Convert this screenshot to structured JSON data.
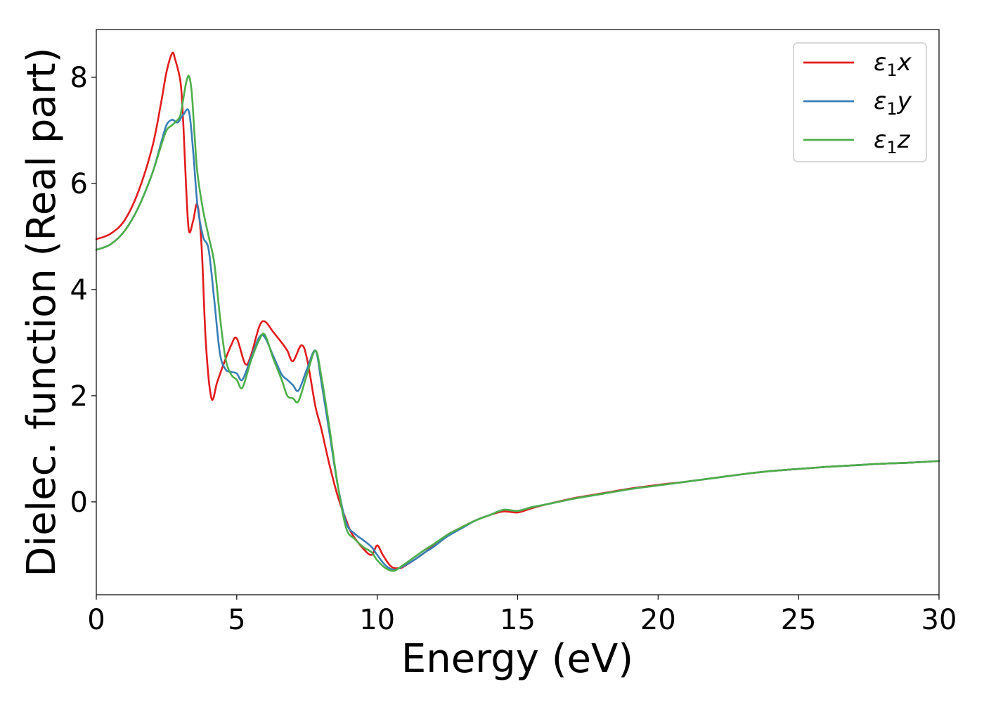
{
  "chart_data": {
    "type": "line",
    "xlabel": "Energy (eV)",
    "ylabel": "Dielec. function (Real part)",
    "xlim": [
      0,
      30
    ],
    "ylim": [
      -1.75,
      8.9
    ],
    "xticks": [
      0,
      5,
      10,
      15,
      20,
      25,
      30
    ],
    "yticks": [
      0,
      2,
      4,
      6,
      8
    ],
    "xtick_labels": [
      "0",
      "5",
      "10",
      "15",
      "20",
      "25",
      "30"
    ],
    "ytick_labels": [
      "0",
      "2",
      "4",
      "6",
      "8"
    ],
    "grid": false,
    "legend_position": "top-right",
    "series": [
      {
        "name": "ε1x",
        "legend": {
          "symbol": "ε",
          "sub": "1",
          "var": "x"
        },
        "color": "#e41a1c",
        "x": [
          0,
          0.5,
          1.0,
          1.5,
          2.0,
          2.3,
          2.5,
          2.7,
          2.8,
          3.0,
          3.1,
          3.2,
          3.3,
          3.45,
          3.6,
          3.75,
          3.9,
          4.1,
          4.3,
          4.5,
          4.8,
          5.0,
          5.3,
          5.5,
          5.8,
          6.0,
          6.3,
          6.6,
          6.8,
          7.0,
          7.3,
          7.5,
          7.8,
          8.0,
          8.3,
          8.6,
          8.9,
          9.1,
          9.5,
          9.8,
          10.0,
          10.2,
          10.5,
          10.8,
          11.0,
          11.3,
          11.7,
          12.0,
          12.5,
          13.0,
          13.5,
          14.0,
          14.5,
          15.0,
          15.5,
          16.0,
          17.0,
          18.0,
          19.0,
          20.0,
          21.0,
          22.0,
          23.0,
          24.0,
          25.0,
          26.0,
          27.0,
          28.0,
          29.0,
          30.0
        ],
        "y": [
          4.95,
          5.05,
          5.3,
          5.85,
          6.7,
          7.5,
          8.1,
          8.45,
          8.35,
          7.9,
          7.1,
          5.9,
          5.1,
          5.3,
          5.6,
          4.8,
          3.0,
          1.95,
          2.25,
          2.55,
          2.95,
          3.08,
          2.6,
          2.75,
          3.3,
          3.4,
          3.2,
          3.0,
          2.85,
          2.65,
          2.95,
          2.7,
          1.8,
          1.4,
          0.7,
          0.1,
          -0.35,
          -0.6,
          -0.88,
          -1.0,
          -0.82,
          -1.0,
          -1.22,
          -1.25,
          -1.2,
          -1.1,
          -0.95,
          -0.82,
          -0.62,
          -0.48,
          -0.35,
          -0.25,
          -0.18,
          -0.2,
          -0.12,
          -0.05,
          0.07,
          0.16,
          0.25,
          0.32,
          0.38,
          0.45,
          0.52,
          0.58,
          0.62,
          0.66,
          0.69,
          0.72,
          0.74,
          0.77
        ]
      },
      {
        "name": "ε1y",
        "legend": {
          "symbol": "ε",
          "sub": "1",
          "var": "y"
        },
        "color": "#377eb8",
        "x": [
          0,
          0.5,
          1.0,
          1.5,
          2.0,
          2.3,
          2.5,
          2.7,
          2.9,
          3.1,
          3.3,
          3.45,
          3.6,
          3.8,
          4.0,
          4.2,
          4.4,
          4.6,
          4.8,
          5.0,
          5.2,
          5.5,
          5.8,
          6.0,
          6.3,
          6.6,
          6.8,
          7.0,
          7.2,
          7.5,
          7.8,
          8.0,
          8.3,
          8.6,
          8.9,
          9.2,
          9.5,
          9.8,
          10.0,
          10.3,
          10.6,
          10.9,
          11.3,
          11.7,
          12.0,
          12.5,
          13.0,
          13.5,
          14.0,
          14.5,
          15.0,
          15.5,
          16.0,
          17.0,
          18.0,
          19.0,
          20.0,
          21.0,
          22.0,
          23.0,
          24.0,
          25.0,
          26.0,
          27.0,
          28.0,
          29.0,
          30.0
        ],
        "y": [
          4.75,
          4.85,
          5.1,
          5.55,
          6.2,
          6.75,
          7.1,
          7.2,
          7.15,
          7.3,
          7.35,
          6.6,
          5.6,
          5.0,
          4.75,
          3.8,
          2.8,
          2.5,
          2.45,
          2.42,
          2.3,
          2.7,
          3.1,
          3.1,
          2.75,
          2.4,
          2.3,
          2.2,
          2.1,
          2.5,
          2.85,
          2.3,
          1.3,
          0.3,
          -0.4,
          -0.6,
          -0.72,
          -0.85,
          -1.0,
          -1.2,
          -1.28,
          -1.22,
          -1.1,
          -0.95,
          -0.85,
          -0.65,
          -0.5,
          -0.35,
          -0.25,
          -0.15,
          -0.17,
          -0.1,
          -0.05,
          0.06,
          0.15,
          0.24,
          0.31,
          0.38,
          0.45,
          0.52,
          0.58,
          0.62,
          0.66,
          0.69,
          0.72,
          0.74,
          0.77
        ]
      },
      {
        "name": "ε1z",
        "legend": {
          "symbol": "ε",
          "sub": "1",
          "var": "z"
        },
        "color": "#4daf4a",
        "x": [
          0,
          0.5,
          1.0,
          1.5,
          2.0,
          2.3,
          2.5,
          2.7,
          2.9,
          3.0,
          3.1,
          3.2,
          3.3,
          3.4,
          3.5,
          3.6,
          3.8,
          4.0,
          4.2,
          4.4,
          4.6,
          4.8,
          5.0,
          5.2,
          5.5,
          5.8,
          6.0,
          6.3,
          6.6,
          6.8,
          7.0,
          7.2,
          7.5,
          7.8,
          8.0,
          8.3,
          8.6,
          8.9,
          9.2,
          9.5,
          9.8,
          10.0,
          10.3,
          10.6,
          10.9,
          11.3,
          11.7,
          12.0,
          12.5,
          13.0,
          13.5,
          14.0,
          14.5,
          15.0,
          15.5,
          16.0,
          17.0,
          18.0,
          19.0,
          20.0,
          21.0,
          22.0,
          23.0,
          24.0,
          25.0,
          26.0,
          27.0,
          28.0,
          29.0,
          30.0
        ],
        "y": [
          4.75,
          4.85,
          5.1,
          5.55,
          6.2,
          6.7,
          7.0,
          7.1,
          7.2,
          7.3,
          7.6,
          7.9,
          8.02,
          7.7,
          6.9,
          6.2,
          5.5,
          5.0,
          4.5,
          3.5,
          2.7,
          2.4,
          2.3,
          2.15,
          2.65,
          3.05,
          3.15,
          2.7,
          2.3,
          2.0,
          1.95,
          1.9,
          2.4,
          2.85,
          2.4,
          1.4,
          0.3,
          -0.5,
          -0.7,
          -0.85,
          -0.95,
          -1.1,
          -1.25,
          -1.3,
          -1.2,
          -1.05,
          -0.9,
          -0.8,
          -0.62,
          -0.48,
          -0.35,
          -0.25,
          -0.15,
          -0.17,
          -0.1,
          -0.05,
          0.06,
          0.15,
          0.24,
          0.31,
          0.38,
          0.45,
          0.52,
          0.58,
          0.62,
          0.66,
          0.69,
          0.72,
          0.74,
          0.77
        ]
      }
    ]
  }
}
